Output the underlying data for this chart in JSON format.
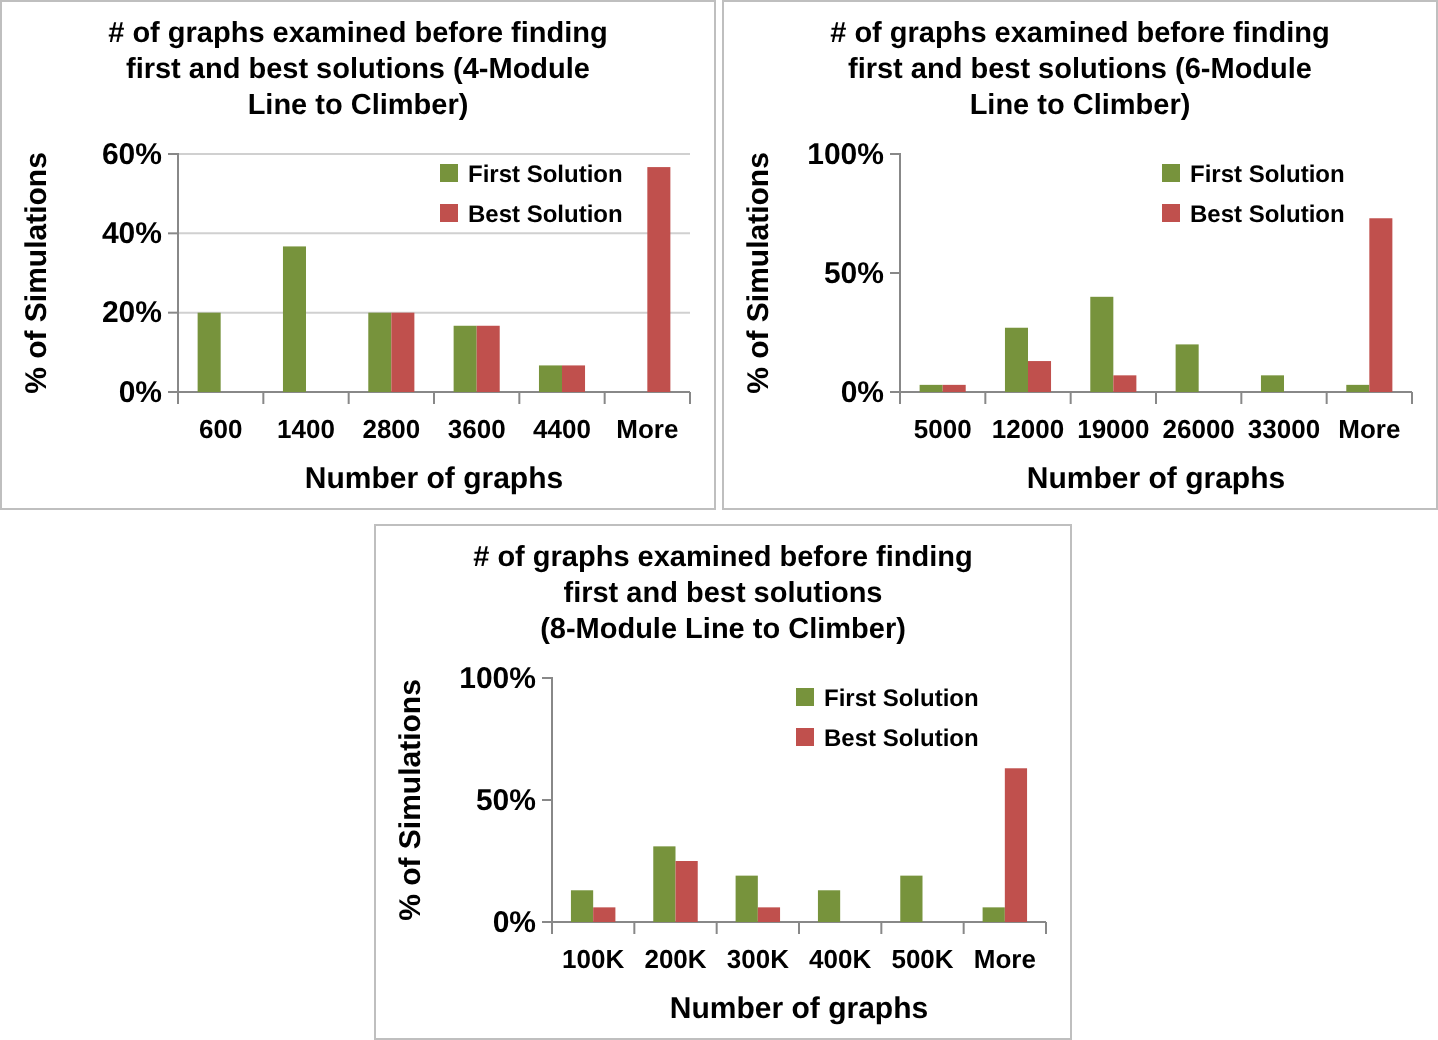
{
  "chart_data": [
    {
      "type": "bar",
      "title": "# of graphs examined before finding\nfirst and best solutions (4-Module\nLine to Climber)",
      "xlabel": "Number of graphs",
      "ylabel": "% of Simulations",
      "categories": [
        "600",
        "1400",
        "2800",
        "3600",
        "4400",
        "More"
      ],
      "series": [
        {
          "name": "First Solution",
          "color": "#77933c",
          "values": [
            20,
            36.7,
            20,
            16.7,
            6.7,
            0
          ]
        },
        {
          "name": "Best Solution",
          "color": "#c0504d",
          "values": [
            0,
            0,
            20,
            16.7,
            6.7,
            56.7
          ]
        }
      ],
      "ylim": [
        0,
        60
      ],
      "yticks": [
        {
          "value": 0,
          "label": "0%"
        },
        {
          "value": 20,
          "label": "20%"
        },
        {
          "value": 40,
          "label": "40%"
        },
        {
          "value": 60,
          "label": "60%"
        }
      ],
      "grid": "y",
      "legend": "top right"
    },
    {
      "type": "bar",
      "title": "# of graphs examined before finding\nfirst and best solutions (6-Module\nLine to Climber)",
      "xlabel": "Number of graphs",
      "ylabel": "% of Simulations",
      "categories": [
        "5000",
        "12000",
        "19000",
        "26000",
        "33000",
        "More"
      ],
      "series": [
        {
          "name": "First Solution",
          "color": "#77933c",
          "values": [
            3,
            27,
            40,
            20,
            7,
            3
          ]
        },
        {
          "name": "Best Solution",
          "color": "#c0504d",
          "values": [
            3,
            13,
            7,
            0,
            0,
            73
          ]
        }
      ],
      "ylim": [
        0,
        100
      ],
      "yticks": [
        {
          "value": 0,
          "label": "0%"
        },
        {
          "value": 50,
          "label": "50%"
        },
        {
          "value": 100,
          "label": "100%"
        }
      ],
      "legend": "top right"
    },
    {
      "type": "bar",
      "title": "# of graphs examined before finding\nfirst and best solutions\n(8-Module Line to Climber)",
      "xlabel": "Number of graphs",
      "ylabel": "% of Simulations",
      "categories": [
        "100K",
        "200K",
        "300K",
        "400K",
        "500K",
        "More"
      ],
      "series": [
        {
          "name": "First Solution",
          "color": "#77933c",
          "values": [
            13,
            31,
            19,
            13,
            19,
            6
          ]
        },
        {
          "name": "Best Solution",
          "color": "#c0504d",
          "values": [
            6,
            25,
            6,
            0,
            0,
            63
          ]
        }
      ],
      "ylim": [
        0,
        100
      ],
      "yticks": [
        {
          "value": 0,
          "label": "0%"
        },
        {
          "value": 50,
          "label": "50%"
        },
        {
          "value": 100,
          "label": "100%"
        }
      ],
      "legend": "top right"
    }
  ]
}
